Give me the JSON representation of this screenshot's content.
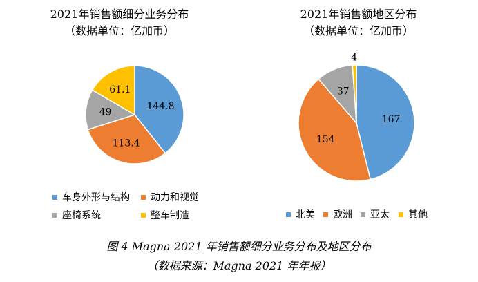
{
  "chart_data": [
    {
      "type": "pie",
      "title": "2021年销售额细分业务分布",
      "subtitle": "（数据单位：亿加币）",
      "categories": [
        "车身外形与结构",
        "动力和视觉",
        "座椅系统",
        "整车制造"
      ],
      "values": [
        144.8,
        113.4,
        49,
        61.1
      ],
      "value_labels": [
        "144.8",
        "113.4",
        "49",
        "61.1"
      ],
      "colors": [
        "#5b9bd5",
        "#ed7d31",
        "#a5a5a5",
        "#ffc000"
      ],
      "legend_position": "bottom"
    },
    {
      "type": "pie",
      "title": "2021年销售额地区分布",
      "subtitle": "（数据单位：亿加币）",
      "categories": [
        "北美",
        "欧洲",
        "亚太",
        "其他"
      ],
      "values": [
        167,
        154,
        37,
        4
      ],
      "value_labels": [
        "167",
        "154",
        "37",
        "4"
      ],
      "colors": [
        "#5b9bd5",
        "#ed7d31",
        "#a5a5a5",
        "#ffc000"
      ],
      "legend_position": "bottom"
    }
  ],
  "caption": {
    "line1": "图 4 Magna 2021 年销售额细分业务分布及地区分布",
    "line2": "（数据来源：Magna 2021 年年报）"
  }
}
